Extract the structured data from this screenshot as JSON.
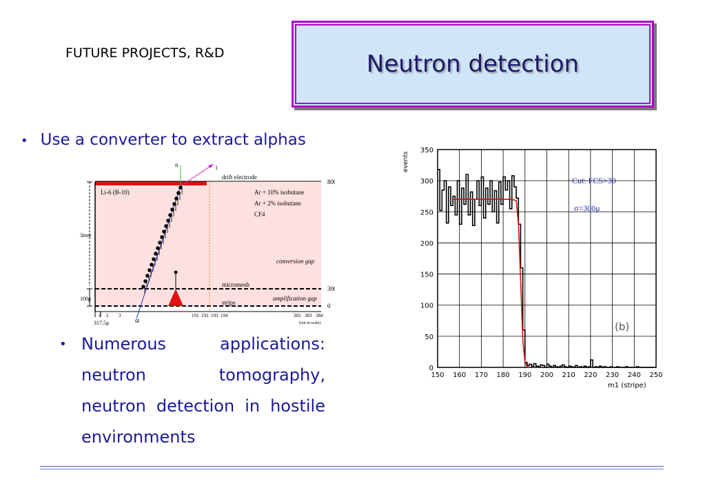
{
  "header": {
    "section": "FUTURE PROJECTS, R&D",
    "title": "Neutron detection"
  },
  "bullets": [
    {
      "symbol": "•",
      "text": "Use a converter to extract alphas"
    },
    {
      "symbol": "•",
      "text": "Numerous applications: neutron tomography, neutron detection in hostile environments"
    }
  ],
  "diagram": {
    "n": "n",
    "t": "t",
    "alpha": "α",
    "drift_electrode": "drift electrode",
    "converter": "Li-6  (B-10)",
    "gas1": "Ar + 10% isobutane",
    "gas2": "Ar +   2% isobutane",
    "gas3": "CF4",
    "conversion_gap": "conversion gap",
    "micromesh": "micromesh",
    "amplification_gap": "amplification gap",
    "strips": "strips",
    "v800": "800V",
    "v300": "300V",
    "v0": "0",
    "dim_3mm": "3mm",
    "dim_100": "100μ",
    "dim_317": "317.5μ",
    "strips_left": [
      "1",
      "2",
      "3"
    ],
    "strips_mid": [
      "191",
      "192",
      "193",
      "194"
    ],
    "strips_right": [
      "382",
      "383",
      "384"
    ],
    "not_in_scale": "(not in scale)"
  },
  "chart_data": {
    "type": "line",
    "title": "",
    "xlabel": "m1  (stripe)",
    "ylabel": "events",
    "xlim": [
      150,
      250
    ],
    "ylim": [
      0,
      350
    ],
    "x_ticks": [
      150,
      160,
      170,
      180,
      190,
      200,
      210,
      220,
      230,
      240,
      250
    ],
    "y_ticks": [
      0,
      50,
      100,
      150,
      200,
      250,
      300,
      350
    ],
    "annotations": [
      "Cut:  FCS>30",
      "σ=300μ",
      "(b)"
    ],
    "series": [
      {
        "style": "histogram",
        "color": "#000000",
        "x": [
          150,
          151,
          152,
          153,
          154,
          155,
          156,
          157,
          158,
          159,
          160,
          161,
          162,
          163,
          164,
          165,
          166,
          167,
          168,
          169,
          170,
          171,
          172,
          173,
          174,
          175,
          176,
          177,
          178,
          179,
          180,
          181,
          182,
          183,
          184,
          185,
          186,
          187,
          188,
          189,
          190,
          191,
          192,
          193,
          194,
          195,
          196,
          197,
          198,
          199,
          200,
          201,
          202,
          203,
          204,
          205,
          206,
          207,
          208,
          209,
          210,
          211,
          212,
          213,
          214,
          215,
          216,
          217,
          218,
          219,
          220,
          221,
          222,
          223,
          224,
          225,
          226,
          227,
          228,
          229,
          230,
          231,
          232,
          233,
          234,
          235,
          236,
          237,
          238,
          239,
          240,
          241,
          242,
          243,
          244,
          245,
          246,
          247,
          248,
          249
        ],
        "values": [
          318,
          252,
          285,
          300,
          232,
          290,
          260,
          275,
          245,
          300,
          230,
          288,
          262,
          310,
          245,
          282,
          228,
          270,
          300,
          260,
          306,
          240,
          288,
          262,
          300,
          250,
          284,
          232,
          298,
          262,
          306,
          285,
          300,
          255,
          308,
          290,
          272,
          230,
          160,
          60,
          8,
          3,
          5,
          2,
          6,
          2,
          1,
          4,
          3,
          0,
          5,
          2,
          0,
          3,
          1,
          0,
          2,
          4,
          1,
          0,
          2,
          1,
          0,
          3,
          0,
          1,
          0,
          2,
          0,
          1,
          12,
          0,
          1,
          0,
          2,
          0,
          1,
          0,
          0,
          1,
          0,
          0,
          1,
          0,
          0,
          0,
          1,
          0,
          0,
          0,
          0,
          1,
          0,
          0,
          0,
          0,
          0,
          0,
          0,
          0
        ]
      },
      {
        "style": "fit",
        "color": "#d01010",
        "x": [
          157,
          160,
          165,
          170,
          175,
          180,
          184,
          186,
          187,
          188,
          189,
          190,
          191,
          192
        ],
        "values": [
          270,
          270,
          270,
          270,
          270,
          270,
          270,
          268,
          230,
          140,
          45,
          8,
          1,
          0
        ]
      }
    ]
  }
}
